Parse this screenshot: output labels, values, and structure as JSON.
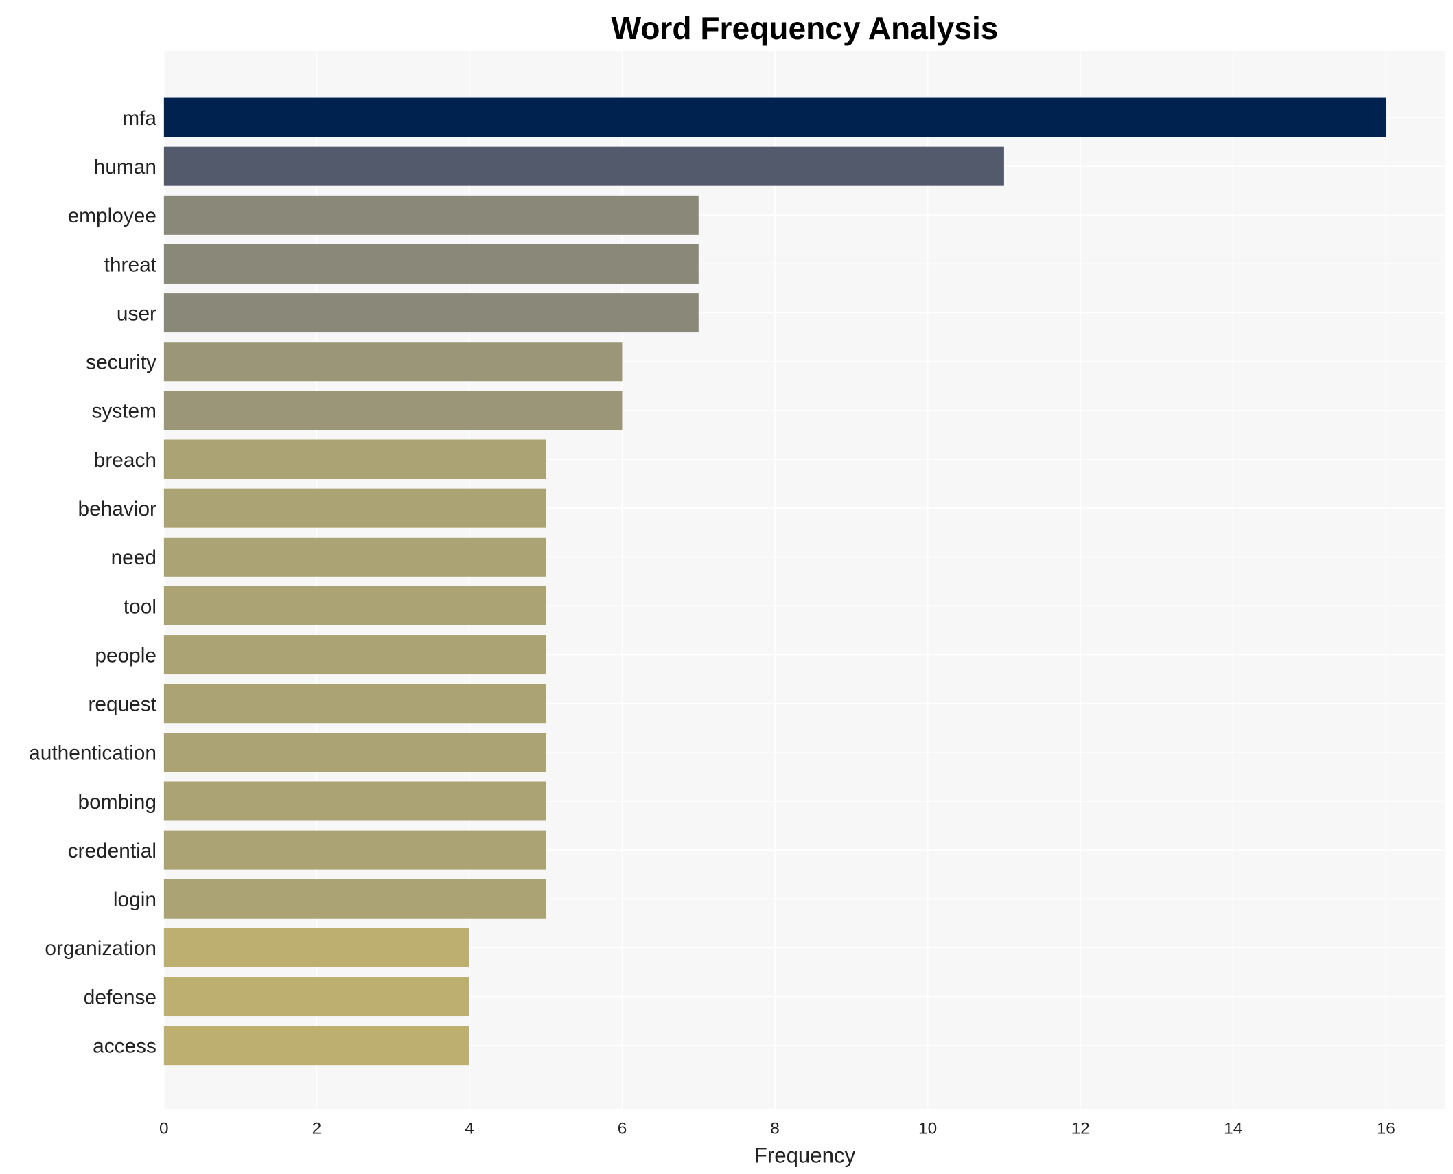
{
  "chart_data": {
    "type": "bar",
    "orientation": "horizontal",
    "title": "Word Frequency Analysis",
    "xlabel": "Frequency",
    "ylabel": "",
    "xlim": [
      0,
      16.8
    ],
    "xticks": [
      0,
      2,
      4,
      6,
      8,
      10,
      12,
      14,
      16
    ],
    "grid": true,
    "background": "#f7f7f7",
    "categories": [
      "mfa",
      "human",
      "employee",
      "threat",
      "user",
      "security",
      "system",
      "breach",
      "behavior",
      "need",
      "tool",
      "people",
      "request",
      "authentication",
      "bombing",
      "credential",
      "login",
      "organization",
      "defense",
      "access"
    ],
    "values": [
      16,
      11,
      7,
      7,
      7,
      6,
      6,
      5,
      5,
      5,
      5,
      5,
      5,
      5,
      5,
      5,
      5,
      4,
      4,
      4
    ],
    "colors": [
      "#00224e",
      "#535a6c",
      "#8a8878",
      "#8a8878",
      "#8a8878",
      "#9b9677",
      "#9b9677",
      "#aba373",
      "#aba373",
      "#aba373",
      "#aba373",
      "#aba373",
      "#aba373",
      "#aba373",
      "#aba373",
      "#aba373",
      "#aba373",
      "#bcaf6f",
      "#bcaf6f",
      "#bcaf6f"
    ]
  }
}
